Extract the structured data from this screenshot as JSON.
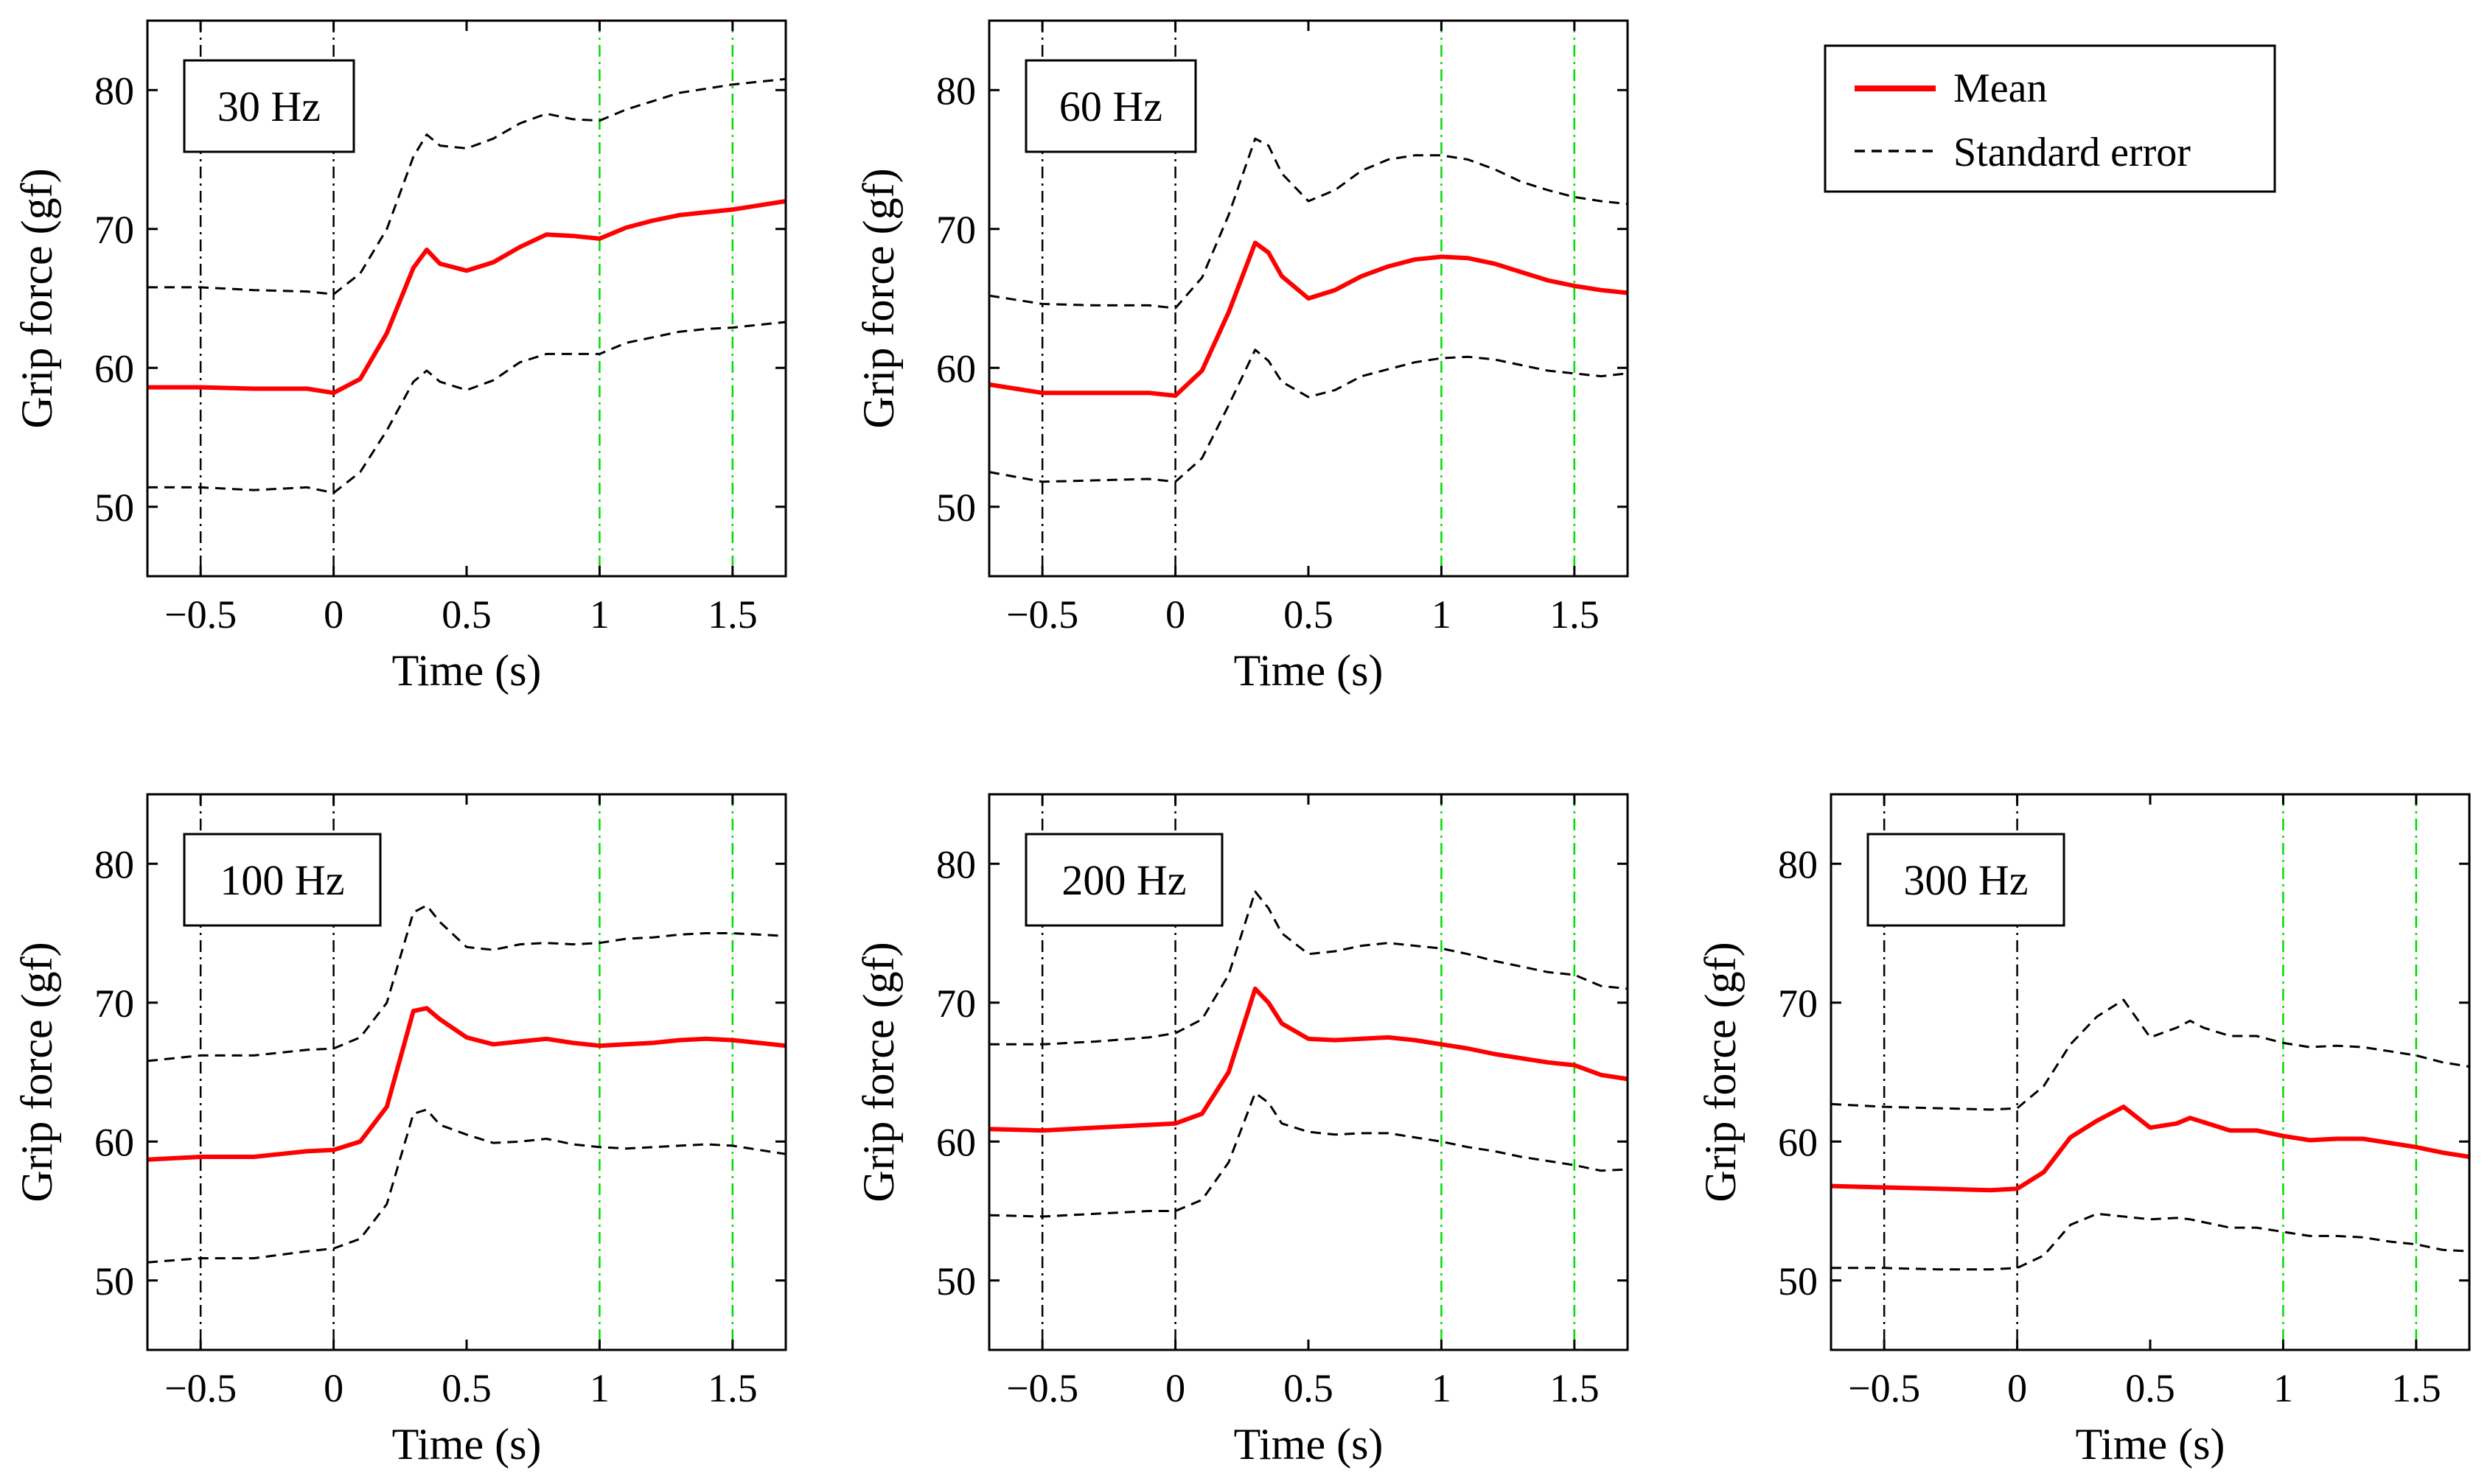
{
  "figure": {
    "legend": {
      "mean_label": "Mean",
      "se_label": "Standard error",
      "mean_color": "#ff0000",
      "se_color": "#000000"
    },
    "marker_colors": {
      "cue": "#000000",
      "window": "#00dd00"
    }
  },
  "chart_data": [
    {
      "type": "line",
      "label": "30 Hz",
      "xlabel": "Time (s)",
      "ylabel": "Grip force (gf)",
      "xlim": [
        -0.7,
        1.7
      ],
      "ylim": [
        45,
        85
      ],
      "xticks": [
        -0.5,
        0,
        0.5,
        1,
        1.5
      ],
      "xtick_labels": [
        "−0.5",
        "0",
        "0.5",
        "1",
        "1.5"
      ],
      "yticks": [
        50,
        60,
        70,
        80
      ],
      "ytick_labels": [
        "50",
        "60",
        "70",
        "80"
      ],
      "vlines_cue": [
        -0.5,
        0
      ],
      "vlines_window": [
        1,
        1.5
      ],
      "x": [
        -0.7,
        -0.5,
        -0.3,
        -0.1,
        0,
        0.1,
        0.2,
        0.3,
        0.35,
        0.4,
        0.5,
        0.6,
        0.7,
        0.8,
        0.9,
        1.0,
        1.1,
        1.2,
        1.3,
        1.4,
        1.5,
        1.6,
        1.7
      ],
      "series": [
        {
          "name": "Mean",
          "values": [
            58.6,
            58.6,
            58.5,
            58.5,
            58.2,
            59.2,
            62.5,
            67.2,
            68.5,
            67.5,
            67.0,
            67.6,
            68.7,
            69.6,
            69.5,
            69.3,
            70.1,
            70.6,
            71.0,
            71.2,
            71.4,
            71.7,
            72.0
          ]
        },
        {
          "name": "Standard error upper",
          "values": [
            65.8,
            65.8,
            65.6,
            65.5,
            65.3,
            66.8,
            70.0,
            75.2,
            76.8,
            76.0,
            75.8,
            76.5,
            77.6,
            78.3,
            77.9,
            77.8,
            78.6,
            79.2,
            79.8,
            80.1,
            80.4,
            80.6,
            80.8
          ]
        },
        {
          "name": "Standard error lower",
          "values": [
            51.4,
            51.4,
            51.2,
            51.4,
            51.0,
            52.5,
            55.5,
            59.0,
            59.8,
            59.0,
            58.4,
            59.1,
            60.4,
            61.0,
            61.0,
            61.0,
            61.8,
            62.2,
            62.6,
            62.8,
            62.9,
            63.1,
            63.3
          ]
        }
      ]
    },
    {
      "type": "line",
      "label": "60 Hz",
      "xlabel": "Time (s)",
      "ylabel": "Grip force (gf)",
      "xlim": [
        -0.7,
        1.7
      ],
      "ylim": [
        45,
        85
      ],
      "xticks": [
        -0.5,
        0,
        0.5,
        1,
        1.5
      ],
      "xtick_labels": [
        "−0.5",
        "0",
        "0.5",
        "1",
        "1.5"
      ],
      "yticks": [
        50,
        60,
        70,
        80
      ],
      "ytick_labels": [
        "50",
        "60",
        "70",
        "80"
      ],
      "vlines_cue": [
        -0.5,
        0
      ],
      "vlines_window": [
        1,
        1.5
      ],
      "x": [
        -0.7,
        -0.5,
        -0.3,
        -0.1,
        0,
        0.1,
        0.2,
        0.3,
        0.35,
        0.4,
        0.5,
        0.6,
        0.7,
        0.8,
        0.9,
        1.0,
        1.1,
        1.2,
        1.3,
        1.4,
        1.5,
        1.6,
        1.7
      ],
      "series": [
        {
          "name": "Mean",
          "values": [
            58.8,
            58.2,
            58.2,
            58.2,
            58.0,
            59.8,
            64.0,
            69.0,
            68.3,
            66.6,
            65.0,
            65.6,
            66.6,
            67.3,
            67.8,
            68.0,
            67.9,
            67.5,
            66.9,
            66.3,
            65.9,
            65.6,
            65.4
          ]
        },
        {
          "name": "Standard error upper",
          "values": [
            65.2,
            64.6,
            64.5,
            64.5,
            64.3,
            66.5,
            71.0,
            76.5,
            76.0,
            74.0,
            72.0,
            72.8,
            74.2,
            75.0,
            75.3,
            75.3,
            75.0,
            74.3,
            73.4,
            72.8,
            72.3,
            72.0,
            71.8
          ]
        },
        {
          "name": "Standard error lower",
          "values": [
            52.5,
            51.8,
            51.9,
            52.0,
            51.8,
            53.5,
            57.3,
            61.3,
            60.5,
            59.0,
            57.9,
            58.4,
            59.4,
            59.9,
            60.4,
            60.7,
            60.8,
            60.6,
            60.2,
            59.8,
            59.6,
            59.4,
            59.6
          ]
        }
      ]
    },
    {
      "type": "line",
      "label": "100 Hz",
      "xlabel": "Time (s)",
      "ylabel": "Grip force (gf)",
      "xlim": [
        -0.7,
        1.7
      ],
      "ylim": [
        45,
        85
      ],
      "xticks": [
        -0.5,
        0,
        0.5,
        1,
        1.5
      ],
      "xtick_labels": [
        "−0.5",
        "0",
        "0.5",
        "1",
        "1.5"
      ],
      "yticks": [
        50,
        60,
        70,
        80
      ],
      "ytick_labels": [
        "50",
        "60",
        "70",
        "80"
      ],
      "vlines_cue": [
        -0.5,
        0
      ],
      "vlines_window": [
        1,
        1.5
      ],
      "x": [
        -0.7,
        -0.5,
        -0.3,
        -0.1,
        0,
        0.1,
        0.2,
        0.3,
        0.35,
        0.4,
        0.5,
        0.6,
        0.7,
        0.8,
        0.9,
        1.0,
        1.1,
        1.2,
        1.3,
        1.4,
        1.5,
        1.6,
        1.7
      ],
      "series": [
        {
          "name": "Mean",
          "values": [
            58.7,
            58.9,
            58.9,
            59.3,
            59.4,
            60.0,
            62.5,
            69.4,
            69.6,
            68.8,
            67.5,
            67.0,
            67.2,
            67.4,
            67.1,
            66.9,
            67.0,
            67.1,
            67.3,
            67.4,
            67.3,
            67.1,
            66.9
          ]
        },
        {
          "name": "Standard error upper",
          "values": [
            65.8,
            66.2,
            66.2,
            66.6,
            66.7,
            67.5,
            70.0,
            76.5,
            77.0,
            75.8,
            74.0,
            73.8,
            74.2,
            74.3,
            74.2,
            74.3,
            74.6,
            74.7,
            74.9,
            75.0,
            75.0,
            74.9,
            74.8
          ]
        },
        {
          "name": "Standard error lower",
          "values": [
            51.3,
            51.6,
            51.6,
            52.1,
            52.3,
            53.0,
            55.5,
            62.0,
            62.3,
            61.2,
            60.5,
            59.9,
            60.0,
            60.2,
            59.8,
            59.6,
            59.5,
            59.6,
            59.7,
            59.8,
            59.7,
            59.4,
            59.1
          ]
        }
      ]
    },
    {
      "type": "line",
      "label": "200 Hz",
      "xlabel": "Time (s)",
      "ylabel": "Grip force (gf)",
      "xlim": [
        -0.7,
        1.7
      ],
      "ylim": [
        45,
        85
      ],
      "xticks": [
        -0.5,
        0,
        0.5,
        1,
        1.5
      ],
      "xtick_labels": [
        "−0.5",
        "0",
        "0.5",
        "1",
        "1.5"
      ],
      "yticks": [
        50,
        60,
        70,
        80
      ],
      "ytick_labels": [
        "50",
        "60",
        "70",
        "80"
      ],
      "vlines_cue": [
        -0.5,
        0
      ],
      "vlines_window": [
        1,
        1.5
      ],
      "x": [
        -0.7,
        -0.5,
        -0.3,
        -0.1,
        0,
        0.1,
        0.2,
        0.3,
        0.35,
        0.4,
        0.5,
        0.6,
        0.7,
        0.8,
        0.9,
        1.0,
        1.1,
        1.2,
        1.3,
        1.4,
        1.5,
        1.6,
        1.7
      ],
      "series": [
        {
          "name": "Mean",
          "values": [
            60.9,
            60.8,
            61.0,
            61.2,
            61.3,
            62.0,
            65.0,
            71.0,
            70.0,
            68.5,
            67.4,
            67.3,
            67.4,
            67.5,
            67.3,
            67.0,
            66.7,
            66.3,
            66.0,
            65.7,
            65.5,
            64.8,
            64.5
          ]
        },
        {
          "name": "Standard error upper",
          "values": [
            67.0,
            67.0,
            67.2,
            67.5,
            67.8,
            68.8,
            72.0,
            78.0,
            76.8,
            75.0,
            73.5,
            73.7,
            74.1,
            74.3,
            74.1,
            73.9,
            73.5,
            73.0,
            72.6,
            72.2,
            72.0,
            71.2,
            71.0
          ]
        },
        {
          "name": "Standard error lower",
          "values": [
            54.7,
            54.6,
            54.8,
            55.0,
            55.0,
            55.8,
            58.5,
            63.5,
            62.8,
            61.3,
            60.7,
            60.5,
            60.6,
            60.6,
            60.3,
            60.0,
            59.6,
            59.3,
            58.9,
            58.6,
            58.3,
            57.9,
            58.0
          ]
        }
      ]
    },
    {
      "type": "line",
      "label": "300 Hz",
      "xlabel": "Time (s)",
      "ylabel": "Grip force (gf)",
      "xlim": [
        -0.7,
        1.7
      ],
      "ylim": [
        45,
        85
      ],
      "xticks": [
        -0.5,
        0,
        0.5,
        1,
        1.5
      ],
      "xtick_labels": [
        "−0.5",
        "0",
        "0.5",
        "1",
        "1.5"
      ],
      "yticks": [
        50,
        60,
        70,
        80
      ],
      "ytick_labels": [
        "50",
        "60",
        "70",
        "80"
      ],
      "vlines_cue": [
        -0.5,
        0
      ],
      "vlines_window": [
        1,
        1.5
      ],
      "x": [
        -0.7,
        -0.5,
        -0.3,
        -0.1,
        0,
        0.1,
        0.2,
        0.3,
        0.4,
        0.5,
        0.6,
        0.65,
        0.7,
        0.8,
        0.9,
        1.0,
        1.1,
        1.2,
        1.3,
        1.4,
        1.5,
        1.6,
        1.7
      ],
      "series": [
        {
          "name": "Mean",
          "values": [
            56.8,
            56.7,
            56.6,
            56.5,
            56.6,
            57.8,
            60.3,
            61.5,
            62.5,
            61.0,
            61.3,
            61.7,
            61.4,
            60.8,
            60.8,
            60.4,
            60.1,
            60.2,
            60.2,
            59.9,
            59.6,
            59.2,
            58.9
          ]
        },
        {
          "name": "Standard error upper",
          "values": [
            62.7,
            62.5,
            62.4,
            62.3,
            62.4,
            64.0,
            67.0,
            69.0,
            70.2,
            67.5,
            68.2,
            68.7,
            68.2,
            67.6,
            67.6,
            67.1,
            66.8,
            66.9,
            66.8,
            66.5,
            66.2,
            65.7,
            65.4
          ]
        },
        {
          "name": "Standard error lower",
          "values": [
            50.9,
            50.9,
            50.8,
            50.8,
            50.9,
            51.8,
            54.0,
            54.8,
            54.6,
            54.4,
            54.5,
            54.4,
            54.2,
            53.8,
            53.8,
            53.5,
            53.2,
            53.2,
            53.1,
            52.8,
            52.6,
            52.2,
            52.1
          ]
        }
      ]
    }
  ]
}
